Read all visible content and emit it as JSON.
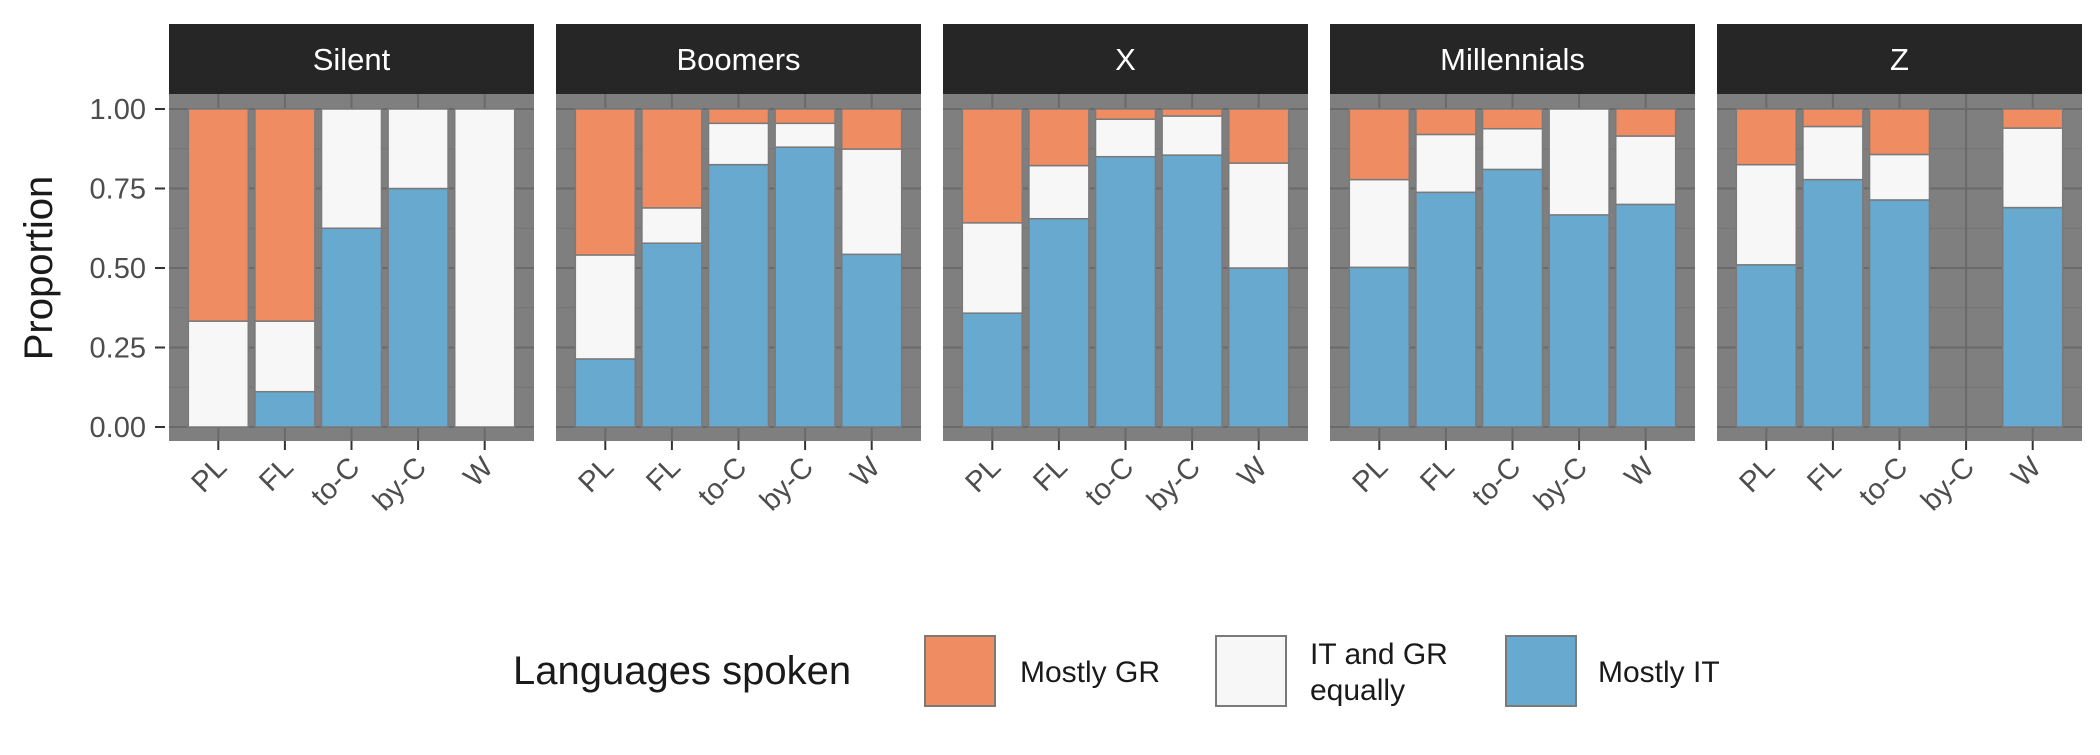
{
  "chart_data": {
    "type": "bar",
    "stacked": true,
    "facet_by": "generation",
    "ylabel": "Proportion",
    "ylim": [
      0,
      1
    ],
    "y_ticks": [
      "0.00",
      "0.25",
      "0.50",
      "0.75",
      "1.00"
    ],
    "categories": [
      "PL",
      "FL",
      "to-C",
      "by-C",
      "W"
    ],
    "legend": {
      "title": "Languages spoken",
      "position": "bottom",
      "items": [
        {
          "key": "gr",
          "label_lines": [
            "Mostly GR"
          ],
          "color": "#F08C62"
        },
        {
          "key": "eq",
          "label_lines": [
            "IT and GR",
            "equally"
          ],
          "color": "#F7F7F7"
        },
        {
          "key": "it",
          "label_lines": [
            "Mostly IT"
          ],
          "color": "#67A9CF"
        }
      ]
    },
    "panel_background": "#7F7F7F",
    "strip_background": "#262626",
    "grid": true,
    "panels": [
      {
        "title": "Silent",
        "bars": [
          {
            "category": "PL",
            "it": 0.0,
            "eq": 0.333,
            "gr": 0.667
          },
          {
            "category": "FL",
            "it": 0.111,
            "eq": 0.222,
            "gr": 0.667
          },
          {
            "category": "to-C",
            "it": 0.625,
            "eq": 0.375,
            "gr": 0.0
          },
          {
            "category": "by-C",
            "it": 0.75,
            "eq": 0.25,
            "gr": 0.0
          },
          {
            "category": "W",
            "it": 0.0,
            "eq": 1.0,
            "gr": 0.0
          }
        ]
      },
      {
        "title": "Boomers",
        "bars": [
          {
            "category": "PL",
            "it": 0.214,
            "eq": 0.327,
            "gr": 0.459
          },
          {
            "category": "FL",
            "it": 0.578,
            "eq": 0.111,
            "gr": 0.311
          },
          {
            "category": "to-C",
            "it": 0.825,
            "eq": 0.13,
            "gr": 0.045
          },
          {
            "category": "by-C",
            "it": 0.88,
            "eq": 0.075,
            "gr": 0.045
          },
          {
            "category": "W",
            "it": 0.543,
            "eq": 0.331,
            "gr": 0.126
          }
        ]
      },
      {
        "title": "X",
        "bars": [
          {
            "category": "PL",
            "it": 0.358,
            "eq": 0.284,
            "gr": 0.358
          },
          {
            "category": "FL",
            "it": 0.655,
            "eq": 0.167,
            "gr": 0.178
          },
          {
            "category": "to-C",
            "it": 0.85,
            "eq": 0.118,
            "gr": 0.032
          },
          {
            "category": "by-C",
            "it": 0.855,
            "eq": 0.123,
            "gr": 0.022
          },
          {
            "category": "W",
            "it": 0.5,
            "eq": 0.33,
            "gr": 0.17
          }
        ]
      },
      {
        "title": "Millennials",
        "bars": [
          {
            "category": "PL",
            "it": 0.502,
            "eq": 0.276,
            "gr": 0.222
          },
          {
            "category": "FL",
            "it": 0.738,
            "eq": 0.182,
            "gr": 0.08
          },
          {
            "category": "to-C",
            "it": 0.81,
            "eq": 0.128,
            "gr": 0.062
          },
          {
            "category": "by-C",
            "it": 0.667,
            "eq": 0.333,
            "gr": 0.0
          },
          {
            "category": "W",
            "it": 0.7,
            "eq": 0.215,
            "gr": 0.085
          }
        ]
      },
      {
        "title": "Z",
        "bars": [
          {
            "category": "PL",
            "it": 0.51,
            "eq": 0.315,
            "gr": 0.175
          },
          {
            "category": "FL",
            "it": 0.778,
            "eq": 0.167,
            "gr": 0.055
          },
          {
            "category": "to-C",
            "it": 0.714,
            "eq": 0.143,
            "gr": 0.143
          },
          {
            "category": "by-C",
            "it": null,
            "eq": null,
            "gr": null
          },
          {
            "category": "W",
            "it": 0.69,
            "eq": 0.25,
            "gr": 0.06
          }
        ]
      }
    ]
  }
}
